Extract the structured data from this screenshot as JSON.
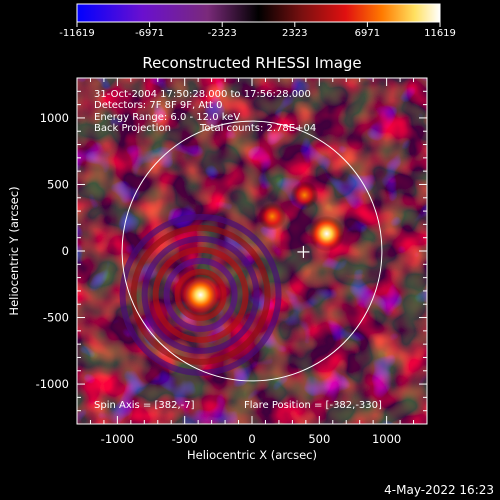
{
  "chart_data": {
    "type": "heatmap",
    "title": "Reconstructed RHESSI Image",
    "xlabel": "Heliocentric X (arcsec)",
    "ylabel": "Heliocentric Y (arcsec)",
    "xlim": [
      -1300,
      1300
    ],
    "ylim": [
      -1300,
      1300
    ],
    "x_ticks": [
      "-1000",
      "-500",
      "0",
      "500",
      "1000"
    ],
    "y_ticks": [
      "-1000",
      "-500",
      "0",
      "500",
      "1000"
    ],
    "colorbar": {
      "ticks": [
        "-11619",
        "-6971",
        "-2323",
        "2323",
        "6971",
        "11619"
      ],
      "range": [
        -11619,
        11619
      ],
      "colors": [
        "#0000ff",
        "#6a10cf",
        "#7a2a7a",
        "#000000",
        "#7a1010",
        "#e01010",
        "#ff7a00",
        "#ffe060",
        "#ffffff"
      ]
    },
    "annotations": {
      "time_range": "31-Oct-2004 17:50:28.000 to 17:56:28.000",
      "detectors": "Detectors: 7F 8F 9F, Att 0",
      "energy": "Energy Range: 6.0 - 12.0 keV",
      "method": "Back Projection",
      "counts": "Total counts: 2.78E+04",
      "spin_axis": "Spin Axis = [382,-7]",
      "flare_position": "Flare Position = [-382,-330]"
    },
    "limb_circle": {
      "center": [
        0,
        0
      ],
      "radius_arcsec": 965
    },
    "marker": {
      "x": 382,
      "y": -7
    },
    "sources": [
      {
        "x": -382,
        "y": -330,
        "level": "max"
      },
      {
        "x": 555,
        "y": 130,
        "level": "high"
      },
      {
        "x": 150,
        "y": 260,
        "level": "medium"
      },
      {
        "x": 390,
        "y": 420,
        "level": "medium"
      }
    ]
  },
  "footer": {
    "date": "4-May-2022 16:23"
  }
}
